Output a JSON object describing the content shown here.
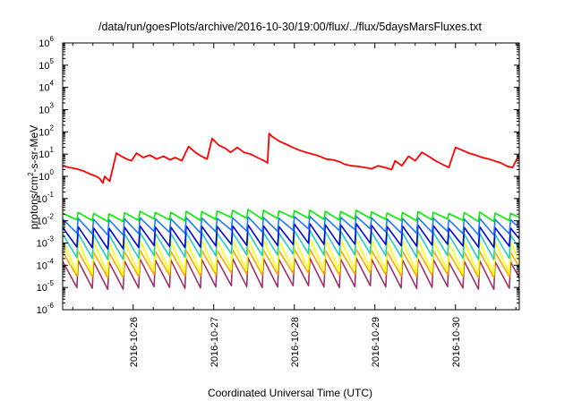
{
  "chart_data": {
    "type": "line",
    "title": "/data/run/goesPlots/archive/2016-10-30/19:00/flux/../flux/5daysMarsFluxes.txt",
    "xlabel": "Coordinated Universal Time (UTC)",
    "ylabel": "protons/cm²-s-sr-MeV",
    "ylabel_parts": {
      "before": "protons/cm",
      "sup": "2",
      "after": "-s-sr-MeV"
    },
    "yscale": "log",
    "ylim": [
      1e-06,
      1000000.0
    ],
    "yticks": [
      {
        "base": "10",
        "exp": "6"
      },
      {
        "base": "10",
        "exp": "5"
      },
      {
        "base": "10",
        "exp": "4"
      },
      {
        "base": "10",
        "exp": "3"
      },
      {
        "base": "10",
        "exp": "2"
      },
      {
        "base": "10",
        "exp": "1"
      },
      {
        "base": "10",
        "exp": "0"
      },
      {
        "base": "10",
        "exp": "-1"
      },
      {
        "base": "10",
        "exp": "-2"
      },
      {
        "base": "10",
        "exp": "-3"
      },
      {
        "base": "10",
        "exp": "-4"
      },
      {
        "base": "10",
        "exp": "-5"
      },
      {
        "base": "10",
        "exp": "-6"
      }
    ],
    "xlim": [
      "2016-10-25T03:00",
      "2016-10-30T19:00"
    ],
    "xticks": [
      "2016-10-26",
      "2016-10-27",
      "2016-10-28",
      "2016-10-29",
      "2016-10-30"
    ],
    "grid": false,
    "series": [
      {
        "color": "#ff0000",
        "kind": "explicit",
        "x": [
          "2016-10-25T03:00",
          "2016-10-25T05:00",
          "2016-10-25T07:00",
          "2016-10-25T09:00",
          "2016-10-25T11:00",
          "2016-10-25T13:00",
          "2016-10-25T14:00",
          "2016-10-25T15:00",
          "2016-10-25T15:30",
          "2016-10-25T17:00",
          "2016-10-25T19:00",
          "2016-10-25T20:30",
          "2016-10-25T22:00",
          "2016-10-25T23:30",
          "2016-10-26T01:00",
          "2016-10-26T03:00",
          "2016-10-26T05:00",
          "2016-10-26T07:00",
          "2016-10-26T09:00",
          "2016-10-26T11:00",
          "2016-10-26T12:30",
          "2016-10-26T14:30",
          "2016-10-26T16:30",
          "2016-10-26T18:30",
          "2016-10-26T20:00",
          "2016-10-26T22:00",
          "2016-10-26T23:30",
          "2016-10-27T01:30",
          "2016-10-27T03:30",
          "2016-10-27T05:00",
          "2016-10-27T07:00",
          "2016-10-27T09:00",
          "2016-10-27T11:00",
          "2016-10-27T13:00",
          "2016-10-27T15:00",
          "2016-10-27T16:00",
          "2016-10-27T16:30",
          "2016-10-27T17:30",
          "2016-10-27T19:30",
          "2016-10-27T21:30",
          "2016-10-27T23:30",
          "2016-10-28T01:30",
          "2016-10-28T03:30",
          "2016-10-28T05:30",
          "2016-10-28T07:30",
          "2016-10-28T09:30",
          "2016-10-28T11:30",
          "2016-10-28T13:30",
          "2016-10-28T15:00",
          "2016-10-28T17:00",
          "2016-10-28T19:00",
          "2016-10-28T21:00",
          "2016-10-28T23:00",
          "2016-10-29T01:00",
          "2016-10-29T03:00",
          "2016-10-29T05:00",
          "2016-10-29T06:00",
          "2016-10-29T08:00",
          "2016-10-29T10:00",
          "2016-10-29T12:00",
          "2016-10-29T14:00",
          "2016-10-29T16:00",
          "2016-10-29T18:00",
          "2016-10-29T20:00",
          "2016-10-29T22:00",
          "2016-10-30T00:00",
          "2016-10-30T02:00",
          "2016-10-30T04:00",
          "2016-10-30T06:00",
          "2016-10-30T08:00",
          "2016-10-30T10:00",
          "2016-10-30T11:30",
          "2016-10-30T13:30",
          "2016-10-30T15:30",
          "2016-10-30T17:00",
          "2016-10-30T18:30",
          "2016-10-30T19:00"
        ],
        "y": [
          3,
          2.5,
          2.2,
          1.8,
          1.3,
          1.0,
          0.8,
          0.5,
          1.0,
          0.6,
          11,
          8,
          6,
          5,
          11,
          7,
          9,
          6,
          8,
          5.5,
          7,
          5,
          22,
          12,
          8.5,
          6,
          50,
          25,
          18,
          12,
          20,
          12,
          10,
          7,
          5,
          4,
          85,
          60,
          38,
          28,
          20,
          15,
          12,
          10,
          8,
          6,
          5.5,
          4.5,
          3.5,
          3,
          2.8,
          2.5,
          2.2,
          3,
          2.5,
          2,
          5,
          3,
          8,
          5,
          12,
          8,
          5,
          3.5,
          2.5,
          20,
          15,
          11,
          9,
          7,
          6,
          5,
          4,
          2.8,
          2.5,
          7,
          7
        ]
      },
      {
        "color": "#00ee00",
        "kind": "sawtooth",
        "period_hours": 4.6,
        "peaks": [
          0.022,
          0.025,
          0.03,
          0.028,
          0.024,
          0.023
        ],
        "troughs": [
          0.01,
          0.011,
          0.013,
          0.012,
          0.011,
          0.01
        ]
      },
      {
        "color": "#1e78ff",
        "kind": "sawtooth",
        "period_hours": 4.6,
        "peaks": [
          0.012,
          0.013,
          0.014,
          0.015,
          0.013,
          0.012
        ],
        "troughs": [
          0.0025,
          0.003,
          0.0035,
          0.004,
          0.003,
          0.0025
        ]
      },
      {
        "color": "#0000dd",
        "kind": "sawtooth",
        "period_hours": 4.6,
        "peaks": [
          0.005,
          0.0055,
          0.006,
          0.007,
          0.006,
          0.005
        ],
        "troughs": [
          0.0006,
          0.0007,
          0.0008,
          0.0009,
          0.0008,
          0.0007
        ]
      },
      {
        "color": "#1fcfbf",
        "kind": "sawtooth",
        "period_hours": 4.6,
        "peaks": [
          0.0025,
          0.0028,
          0.003,
          0.0035,
          0.003,
          0.0025
        ],
        "troughs": [
          0.0002,
          0.00025,
          0.0003,
          0.0003,
          0.00025,
          0.0002
        ]
      },
      {
        "color": "#ffff00",
        "kind": "sawtooth",
        "period_hours": 4.6,
        "peaks": [
          0.0012,
          0.0013,
          0.0014,
          0.0015,
          0.0013,
          0.0012
        ],
        "troughs": [
          4e-05,
          5e-05,
          6e-05,
          6e-05,
          5e-05,
          4e-05
        ]
      },
      {
        "color": "#ffa500",
        "kind": "sawtooth",
        "period_hours": 4.6,
        "peaks": [
          0.0004,
          0.00045,
          0.0005,
          0.0005,
          0.00045,
          0.0004
        ],
        "troughs": [
          3e-05,
          3.5e-05,
          4e-05,
          4e-05,
          3.5e-05,
          3e-05
        ]
      },
      {
        "color": "#a0306a",
        "kind": "sawtooth",
        "period_hours": 4.6,
        "peaks": [
          0.00015,
          0.00018,
          0.0002,
          0.0002,
          0.00018,
          0.00015
        ],
        "troughs": [
          9e-06,
          1e-05,
          1.1e-05,
          1.1e-05,
          1e-05,
          9e-06
        ]
      }
    ]
  }
}
